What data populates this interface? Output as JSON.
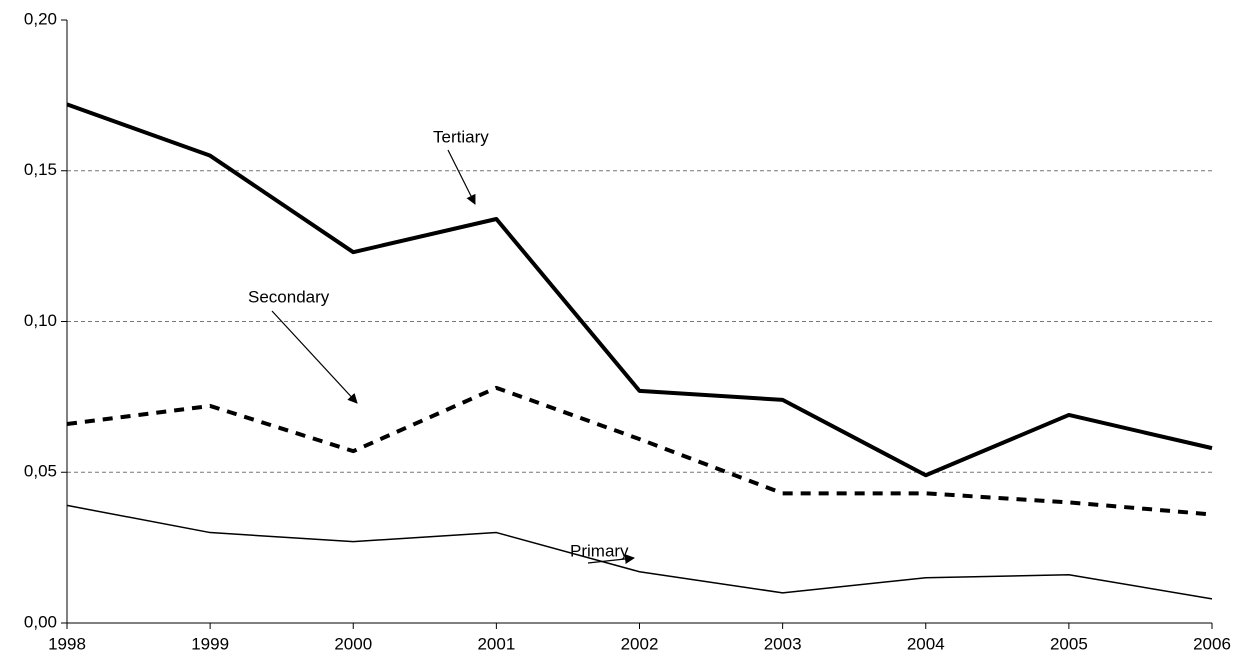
{
  "chart_data": {
    "type": "line",
    "x": [
      1998,
      1999,
      2000,
      2001,
      2002,
      2003,
      2004,
      2005,
      2006
    ],
    "xlim": [
      1998,
      2006
    ],
    "xticks": [
      1998,
      1999,
      2000,
      2001,
      2002,
      2003,
      2004,
      2005,
      2006
    ],
    "ylim": [
      0,
      0.2
    ],
    "yticks": [
      {
        "value": 0,
        "label": "0,00"
      },
      {
        "value": 0.05,
        "label": "0,05"
      },
      {
        "value": 0.1,
        "label": "0,10"
      },
      {
        "value": 0.15,
        "label": "0,15"
      },
      {
        "value": 0.2,
        "label": "0,20"
      }
    ],
    "grid": true,
    "series": [
      {
        "name": "Tertiary",
        "color": "#000000",
        "line_width": 4,
        "dashed": false,
        "values": [
          0.172,
          0.155,
          0.123,
          0.134,
          0.077,
          0.074,
          0.049,
          0.069,
          0.058
        ]
      },
      {
        "name": "Secondary",
        "color": "#000000",
        "line_width": 4,
        "dashed": true,
        "values": [
          0.066,
          0.072,
          0.057,
          0.078,
          0.061,
          0.043,
          0.043,
          0.04,
          0.036
        ]
      },
      {
        "name": "Primary",
        "color": "#000000",
        "line_width": 1.5,
        "dashed": false,
        "values": [
          0.039,
          0.03,
          0.027,
          0.03,
          0.017,
          0.01,
          0.015,
          0.016,
          0.008
        ]
      }
    ]
  }
}
